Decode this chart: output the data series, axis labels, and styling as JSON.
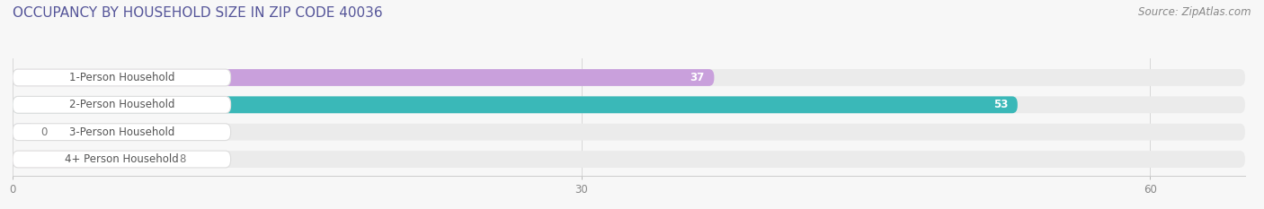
{
  "title": "OCCUPANCY BY HOUSEHOLD SIZE IN ZIP CODE 40036",
  "source": "Source: ZipAtlas.com",
  "categories": [
    "1-Person Household",
    "2-Person Household",
    "3-Person Household",
    "4+ Person Household"
  ],
  "values": [
    37,
    53,
    0,
    8
  ],
  "bar_colors": [
    "#c9a0dc",
    "#3ab8b8",
    "#b0b8e8",
    "#f4a0b8"
  ],
  "bg_pill_color": "#ebebeb",
  "label_bg_color": "#ffffff",
  "label_border_color": "#dddddd",
  "xlim": [
    0,
    65
  ],
  "xticks": [
    0,
    30,
    60
  ],
  "title_fontsize": 11,
  "source_fontsize": 8.5,
  "label_fontsize": 8.5,
  "value_fontsize": 8.5,
  "background_color": "#f7f7f7",
  "grid_color": "#d8d8d8",
  "tick_label_color": "#888888"
}
